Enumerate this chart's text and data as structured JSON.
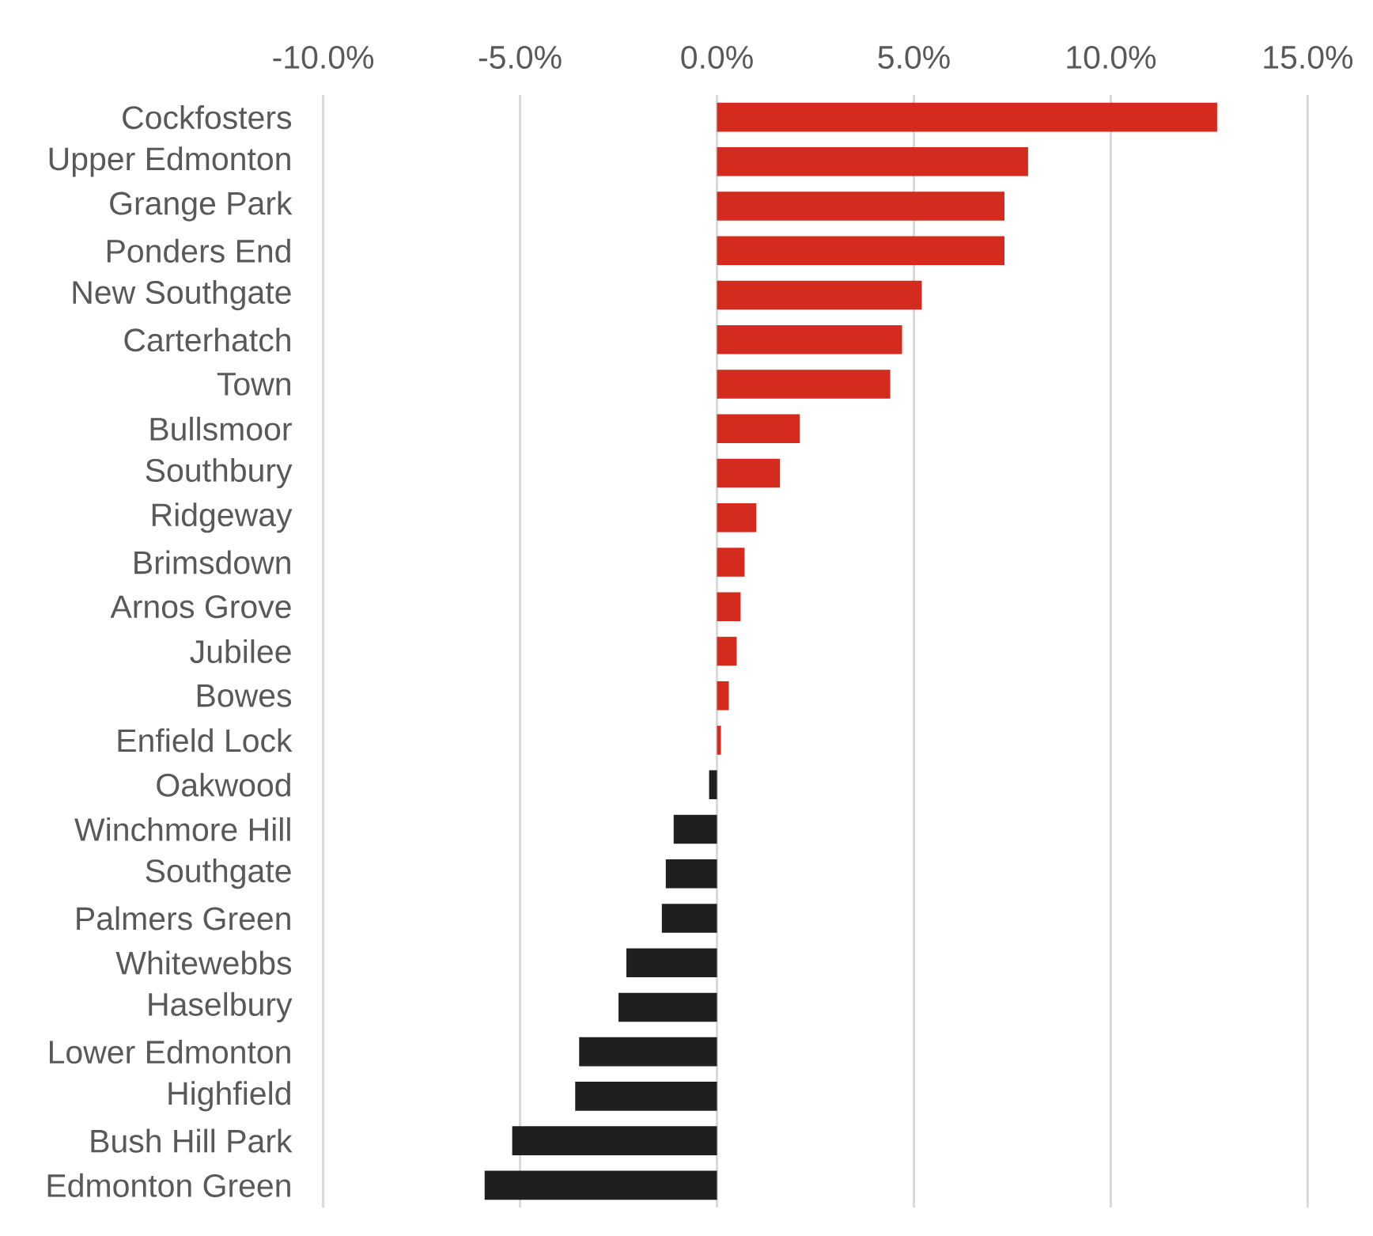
{
  "chart_data": {
    "type": "bar",
    "orientation": "horizontal",
    "categories": [
      "Cockfosters",
      "Upper Edmonton",
      "Grange Park",
      "Ponders End",
      "New Southgate",
      "Carterhatch",
      "Town",
      "Bullsmoor",
      "Southbury",
      "Ridgeway",
      "Brimsdown",
      "Arnos Grove",
      "Jubilee",
      "Bowes",
      "Enfield Lock",
      "Oakwood",
      "Winchmore Hill",
      "Southgate",
      "Palmers Green",
      "Whitewebbs",
      "Haselbury",
      "Lower Edmonton",
      "Highfield",
      "Bush Hill Park",
      "Edmonton Green"
    ],
    "values": [
      12.7,
      7.9,
      7.3,
      7.3,
      5.2,
      4.7,
      4.4,
      2.1,
      1.6,
      1.0,
      0.7,
      0.6,
      0.5,
      0.3,
      0.1,
      -0.2,
      -1.1,
      -1.3,
      -1.4,
      -2.3,
      -2.5,
      -3.5,
      -3.6,
      -5.2,
      -5.9
    ],
    "colors": [
      "#d52b1e",
      "#d52b1e",
      "#d52b1e",
      "#d52b1e",
      "#d52b1e",
      "#d52b1e",
      "#d52b1e",
      "#d52b1e",
      "#d52b1e",
      "#d52b1e",
      "#d52b1e",
      "#d52b1e",
      "#d52b1e",
      "#d52b1e",
      "#d52b1e",
      "#1f1f1f",
      "#1f1f1f",
      "#1f1f1f",
      "#1f1f1f",
      "#1f1f1f",
      "#1f1f1f",
      "#1f1f1f",
      "#1f1f1f",
      "#1f1f1f",
      "#1f1f1f"
    ],
    "xlim": [
      -10,
      15
    ],
    "xticks": [
      {
        "value": -10,
        "label": "-10.0%"
      },
      {
        "value": -5,
        "label": "-5.0%"
      },
      {
        "value": 0,
        "label": "0.0%"
      },
      {
        "value": 5,
        "label": "5.0%"
      },
      {
        "value": 10,
        "label": "10.0%"
      },
      {
        "value": 15,
        "label": "15.0%"
      }
    ],
    "grid": "x"
  }
}
